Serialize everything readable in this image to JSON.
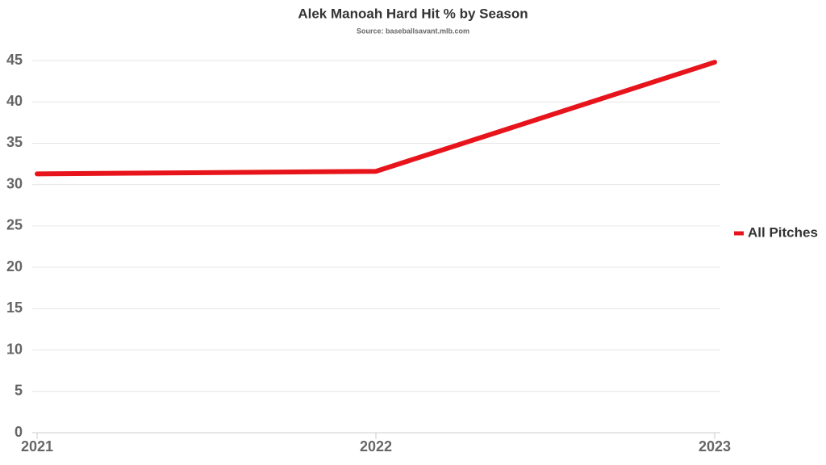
{
  "chart_data": {
    "type": "line",
    "title": "Alek Manoah Hard Hit % by Season",
    "subtitle": "Source: baseballsavant.mlb.com",
    "categories": [
      "2021",
      "2022",
      "2023"
    ],
    "series": [
      {
        "name": "All Pitches",
        "color": "#e8141c",
        "values": [
          31.3,
          31.6,
          44.8
        ]
      }
    ],
    "ylim": [
      0,
      45
    ],
    "yticks": [
      0,
      5,
      10,
      15,
      20,
      25,
      30,
      35,
      40,
      45
    ],
    "grid": true,
    "legend": "right"
  }
}
